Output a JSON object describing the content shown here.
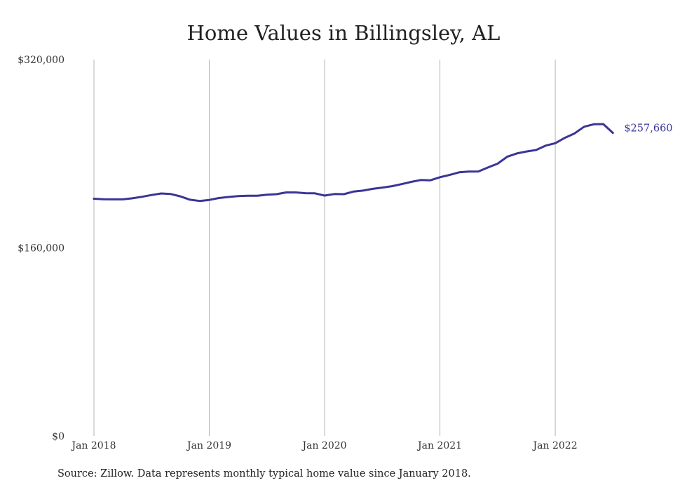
{
  "chart_data": {
    "type": "line",
    "title": "Home Values in Billingsley, AL",
    "xlabel": "",
    "ylabel": "",
    "ylim": [
      0,
      320000
    ],
    "y_ticks": [
      "$0",
      "$160,000",
      "$320,000"
    ],
    "x_ticks": [
      "Jan 2018",
      "Jan 2019",
      "Jan 2020",
      "Jan 2021",
      "Jan 2022"
    ],
    "grid": "vertical",
    "line_color": "#3a3596",
    "end_label": "$257,660",
    "series": [
      {
        "x": [
          "2018-01",
          "2018-02",
          "2018-03",
          "2018-04",
          "2018-05",
          "2018-06",
          "2018-07",
          "2018-08",
          "2018-09",
          "2018-10",
          "2018-11",
          "2018-12",
          "2019-01",
          "2019-02",
          "2019-03",
          "2019-04",
          "2019-05",
          "2019-06",
          "2019-07",
          "2019-08",
          "2019-09",
          "2019-10",
          "2019-11",
          "2019-12",
          "2020-01",
          "2020-02",
          "2020-03",
          "2020-04",
          "2020-05",
          "2020-06",
          "2020-07",
          "2020-08",
          "2020-09",
          "2020-10",
          "2020-11",
          "2020-12",
          "2021-01",
          "2021-02",
          "2021-03",
          "2021-04",
          "2021-05",
          "2021-06",
          "2021-07",
          "2021-08",
          "2021-09",
          "2021-10",
          "2021-11",
          "2021-12",
          "2022-01",
          "2022-02",
          "2022-03",
          "2022-04",
          "2022-05",
          "2022-06",
          "2022-07"
        ],
        "values": [
          201700,
          201300,
          201200,
          201200,
          202100,
          203400,
          204900,
          206200,
          205700,
          203700,
          200900,
          199800,
          200700,
          202300,
          203200,
          204000,
          204200,
          204300,
          205100,
          205600,
          207100,
          207100,
          206400,
          206300,
          204400,
          205700,
          205600,
          207800,
          208600,
          210100,
          211200,
          212400,
          214100,
          216000,
          217600,
          217400,
          220000,
          221900,
          224200,
          224800,
          224900,
          228300,
          231500,
          237400,
          240200,
          241900,
          243100,
          246900,
          248900,
          253500,
          257200,
          262900,
          265000,
          265200,
          257660
        ]
      }
    ]
  },
  "source_note": "Source: Zillow. Data represents monthly typical home value since January 2018."
}
